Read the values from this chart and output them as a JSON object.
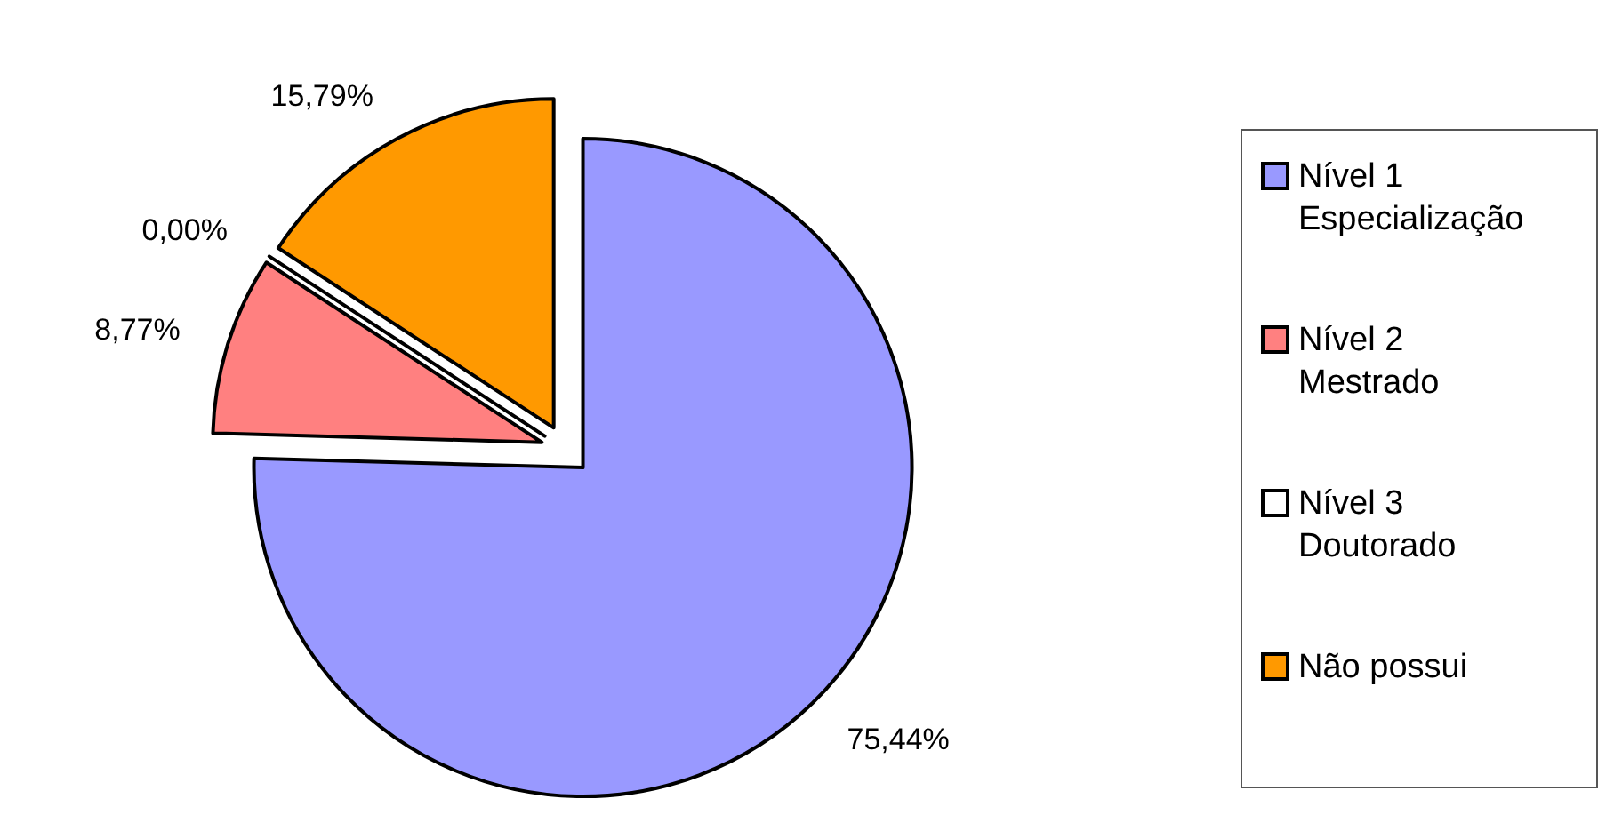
{
  "chart_data": {
    "type": "pie",
    "categories": [
      "Nível 1\nEspecialização",
      "Nível 2\nMestrado",
      "Nível 3\nDoutorado",
      "Não possui"
    ],
    "values": [
      75.44,
      8.77,
      0,
      15.79
    ],
    "value_labels": [
      "75,44%",
      "8,77%",
      "0,00%",
      "15,79%"
    ],
    "colors": [
      "#9999ff",
      "#ff8080",
      "#ffffff",
      "#ff9900"
    ],
    "legend": "right"
  }
}
